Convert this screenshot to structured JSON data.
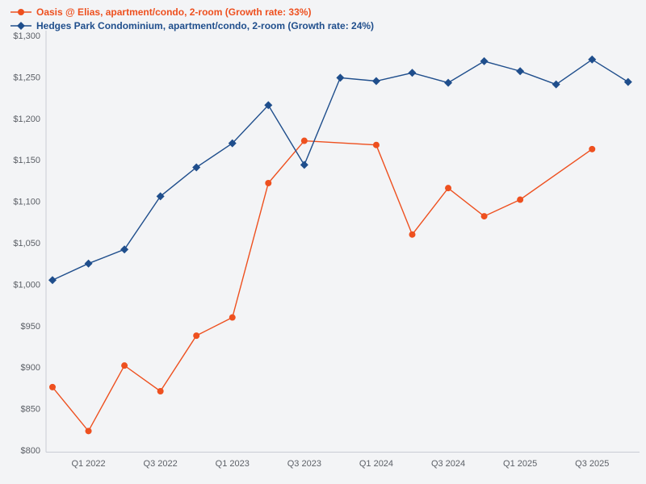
{
  "chart_data": {
    "type": "line",
    "title": "",
    "xlabel": "",
    "ylabel": "",
    "ylim": [
      800,
      1300
    ],
    "grid": false,
    "legend_position": "top-left",
    "background": "#f3f4f6",
    "axis_color": "#c9ccd4",
    "tick_color": "#5b5f66",
    "x": [
      "Q4 2021",
      "Q1 2022",
      "Q2 2022",
      "Q3 2022",
      "Q4 2022",
      "Q1 2023",
      "Q2 2023",
      "Q3 2023",
      "Q4 2023",
      "Q1 2024",
      "Q2 2024",
      "Q3 2024",
      "Q4 2024",
      "Q1 2025",
      "Q2 2025",
      "Q3 2025",
      "Q4 2025"
    ],
    "x_ticks": [
      {
        "index": 1,
        "label": "Q1 2022"
      },
      {
        "index": 3,
        "label": "Q3 2022"
      },
      {
        "index": 5,
        "label": "Q1 2023"
      },
      {
        "index": 7,
        "label": "Q3 2023"
      },
      {
        "index": 9,
        "label": "Q1 2024"
      },
      {
        "index": 11,
        "label": "Q3 2024"
      },
      {
        "index": 13,
        "label": "Q1 2025"
      },
      {
        "index": 15,
        "label": "Q3 2025"
      }
    ],
    "y_ticks": [
      {
        "value": 800,
        "label": "$800"
      },
      {
        "value": 850,
        "label": "$850"
      },
      {
        "value": 900,
        "label": "$900"
      },
      {
        "value": 950,
        "label": "$950"
      },
      {
        "value": 1000,
        "label": "$1,000"
      },
      {
        "value": 1050,
        "label": "$1,050"
      },
      {
        "value": 1100,
        "label": "$1,100"
      },
      {
        "value": 1150,
        "label": "$1,150"
      },
      {
        "value": 1200,
        "label": "$1,200"
      },
      {
        "value": 1250,
        "label": "$1,250"
      },
      {
        "value": 1300,
        "label": "$1,300"
      }
    ],
    "series": [
      {
        "name": "Oasis @ Elias, apartment/condo, 2-room (Growth rate: 33%)",
        "growth_rate": "33%",
        "color": "#ee501f",
        "marker": "circle",
        "values": [
          876,
          823,
          902,
          871,
          938,
          960,
          1122,
          1173,
          null,
          1168,
          1060,
          1116,
          1082,
          1102,
          null,
          1163,
          null
        ]
      },
      {
        "name": "Hedges Park Condominium, apartment/condo, 2-room (Growth rate: 24%)",
        "growth_rate": "24%",
        "color": "#1f4e8c",
        "marker": "diamond",
        "values": [
          1005,
          1025,
          1042,
          1106,
          1141,
          1170,
          1216,
          1144,
          1249,
          1245,
          1255,
          1243,
          1269,
          1257,
          1241,
          1271,
          1244
        ]
      }
    ]
  }
}
